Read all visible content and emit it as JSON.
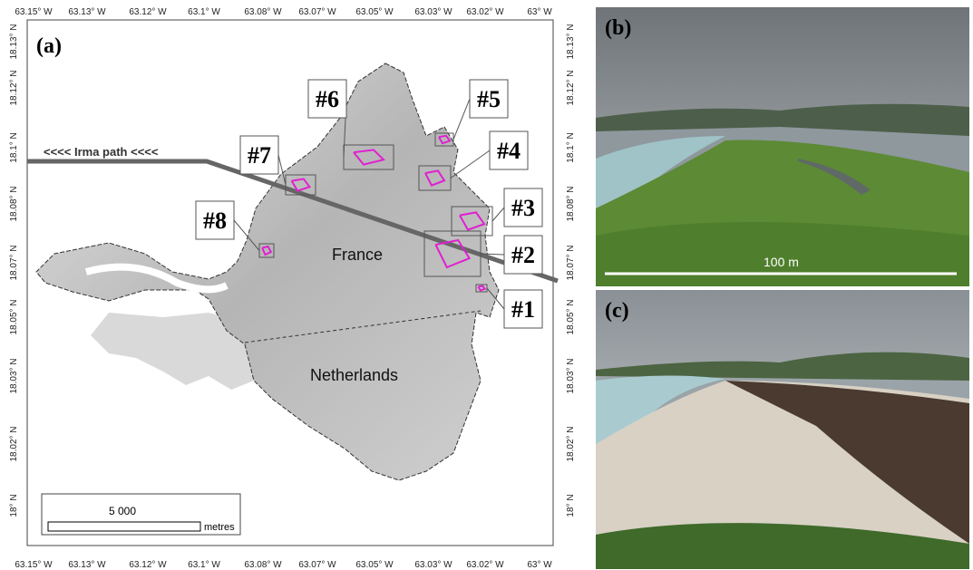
{
  "map": {
    "panel_label": "(a)",
    "lon_labels": [
      "63.15° W",
      "63.13° W",
      "63.12° W",
      "63.1° W",
      "63.08° W",
      "63.07° W",
      "63.05° W",
      "63.03° W",
      "63.02° W",
      "63° W"
    ],
    "lat_labels": [
      "18.13° N",
      "18.12° N",
      "18.1° N",
      "18.08° N",
      "18.07° N",
      "18.05° N",
      "18.03° N",
      "18.02° N",
      "18° N"
    ],
    "irma_path": "<<<< Irma path <<<<",
    "regions": [
      "France",
      "Netherlands"
    ],
    "sites": [
      "#1",
      "#2",
      "#3",
      "#4",
      "#5",
      "#6",
      "#7",
      "#8"
    ],
    "scale_bar": {
      "length": "5 000",
      "unit": "metres"
    }
  },
  "photos": [
    {
      "panel_label": "(b)",
      "scale": "100 m"
    },
    {
      "panel_label": "(c)"
    }
  ]
}
